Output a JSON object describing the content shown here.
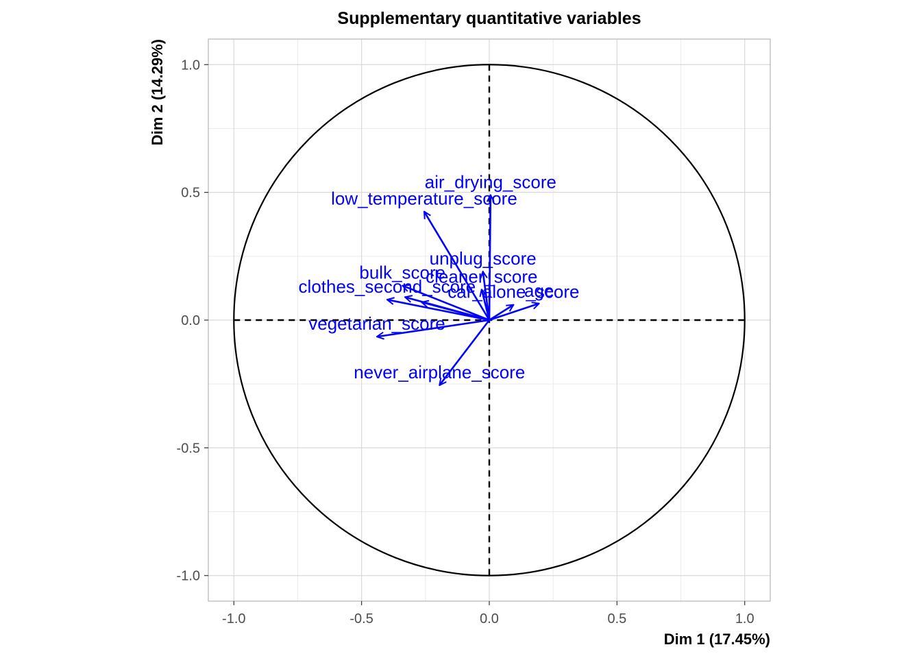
{
  "chart_data": {
    "type": "scatter",
    "subtype": "pca-correlation-circle",
    "title": "Supplementary quantitative variables",
    "xlabel": "Dim 1 (17.45%)",
    "ylabel": "Dim 2 (14.29%)",
    "xlim": [
      -1.1,
      1.1
    ],
    "ylim": [
      -1.1,
      1.1
    ],
    "x_ticks": [
      -1.0,
      -0.5,
      0.0,
      0.5,
      1.0
    ],
    "y_ticks": [
      -1.0,
      -0.5,
      0.0,
      0.5,
      1.0
    ],
    "x_tick_labels": [
      "-1.0",
      "-0.5",
      "0.0",
      "0.5",
      "1.0"
    ],
    "y_tick_labels": [
      "-1.0",
      "-0.5",
      "0.0",
      "0.5",
      "1.0"
    ],
    "grid": true,
    "unit_circle": true,
    "arrow_color": "#0000ff",
    "variables": [
      {
        "name": "air_drying_score",
        "x": 0.005,
        "y": 0.49
      },
      {
        "name": "low_temperature_score",
        "x": -0.255,
        "y": 0.425
      },
      {
        "name": "unplug_score",
        "x": -0.025,
        "y": 0.19
      },
      {
        "name": "bulk_score",
        "x": -0.34,
        "y": 0.135
      },
      {
        "name": "cleaner_score",
        "x": -0.03,
        "y": 0.12
      },
      {
        "name": "age",
        "x": 0.195,
        "y": 0.065
      },
      {
        "name": "clothes_second_score",
        "x": -0.4,
        "y": 0.08
      },
      {
        "name": "car_alone_score",
        "x": 0.095,
        "y": 0.06
      },
      {
        "name": "vegetarian_score",
        "x": -0.44,
        "y": -0.065
      },
      {
        "name": "never_airplane_score",
        "x": -0.195,
        "y": -0.255
      },
      {
        "name": "",
        "x": -0.33,
        "y": 0.09
      },
      {
        "name": "",
        "x": -0.265,
        "y": 0.07
      }
    ]
  }
}
